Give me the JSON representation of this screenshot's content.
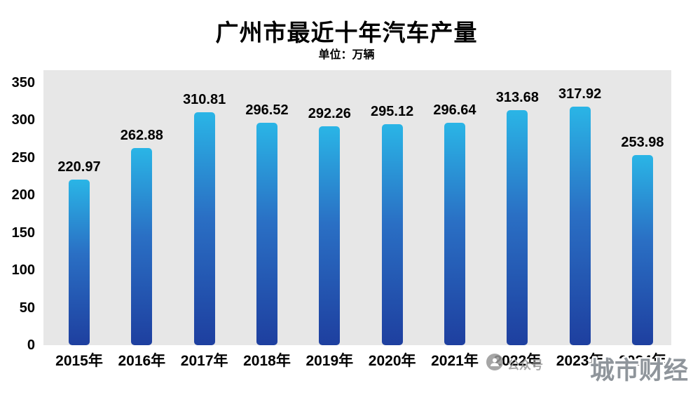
{
  "title": "广州市最近十年汽车产量",
  "subtitle": "单位：万辆",
  "watermark": {
    "icon": "wechat-official-account-icon",
    "label": "公众号",
    "brand": "城市财经"
  },
  "chart_data": {
    "type": "bar",
    "title": "广州市最近十年汽车产量",
    "subtitle": "单位：万辆",
    "unit": "万辆",
    "categories": [
      "2015年",
      "2016年",
      "2017年",
      "2018年",
      "2019年",
      "2020年",
      "2021年",
      "2022年",
      "2023年",
      "2024年"
    ],
    "values": [
      220.97,
      262.88,
      310.81,
      296.52,
      292.26,
      295.12,
      296.64,
      313.68,
      317.92,
      253.98
    ],
    "xlabel": "",
    "ylabel": "",
    "ylim": [
      0,
      350
    ],
    "yticks": [
      0,
      50,
      100,
      150,
      200,
      250,
      300,
      350
    ],
    "grid": false,
    "legend": false,
    "plot_bg": "#e7e7e7",
    "bar_gradient_top": "#2ab5e6",
    "bar_gradient_mid": "#2a6fc4",
    "bar_gradient_bottom": "#1e3f9f",
    "label_color": "#000000"
  }
}
